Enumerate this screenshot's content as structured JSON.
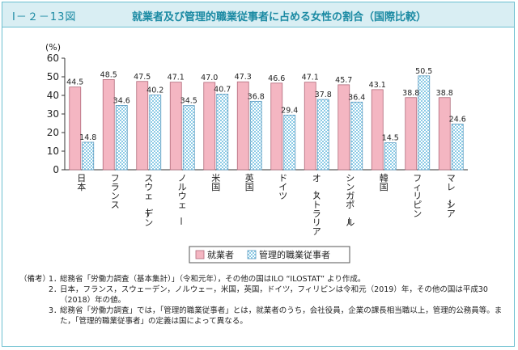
{
  "figure": {
    "number": "Ⅰ－２－13図",
    "title": "就業者及び管理的職業従事者に占める女性の割合（国際比較）"
  },
  "chart_data": {
    "type": "bar",
    "title": "就業者及び管理的職業従事者に占める女性の割合（国際比較）",
    "ylabel": "(%)",
    "ylim": [
      0,
      60
    ],
    "yticks": [
      0,
      10,
      20,
      30,
      40,
      50,
      60
    ],
    "grid": false,
    "legend_position": "bottom-center",
    "categories": [
      "日本",
      "フランス",
      "スウェーデン",
      "ノルウェー",
      "米国",
      "英国",
      "ドイツ",
      "オーストラリア",
      "シンガポール",
      "韓国",
      "フィリピン",
      "マレーシア"
    ],
    "series": [
      {
        "name": "就業者",
        "color": "#f4b6c2",
        "values": [
          44.5,
          48.5,
          47.5,
          47.1,
          47.0,
          47.3,
          46.6,
          47.1,
          45.7,
          43.1,
          38.8,
          38.8
        ]
      },
      {
        "name": "管理的職業従事者",
        "color": "#bfe2f2",
        "values": [
          14.8,
          34.6,
          40.2,
          34.5,
          40.7,
          36.8,
          29.4,
          37.8,
          36.4,
          14.5,
          50.5,
          24.6
        ]
      }
    ],
    "value_labels": [
      [
        "44.5",
        "48.5",
        "47.5",
        "47.1",
        "47.0",
        "47.3",
        "46.6",
        "47.1",
        "45.7",
        "43.1",
        "38.8",
        "38.8"
      ],
      [
        "14.8",
        "34.6",
        "40.2",
        "34.5",
        "40.7",
        "36.8",
        "29.4",
        "37.8",
        "36.4",
        "14.5",
        "50.5",
        "24.6"
      ]
    ]
  },
  "notes": {
    "head": "（備考）",
    "items": [
      {
        "num": "1．",
        "text": "総務省「労働力調査（基本集計）」（令和元年），その他の国はILO “ILOSTAT” より作成。"
      },
      {
        "num": "2．",
        "text": "日本，フランス，スウェーデン，ノルウェー，米国，英国，ドイツ，フィリピンは令和元（2019）年，その他の国は平成30（2018）年の値。"
      },
      {
        "num": "3．",
        "text": "総務省「労働力調査」では，「管理的職業従事者」とは，就業者のうち，会社役員，企業の課長相当職以上，管理的公務員等。また，「管理的職業従事者」の定義は国によって異なる。"
      }
    ]
  }
}
